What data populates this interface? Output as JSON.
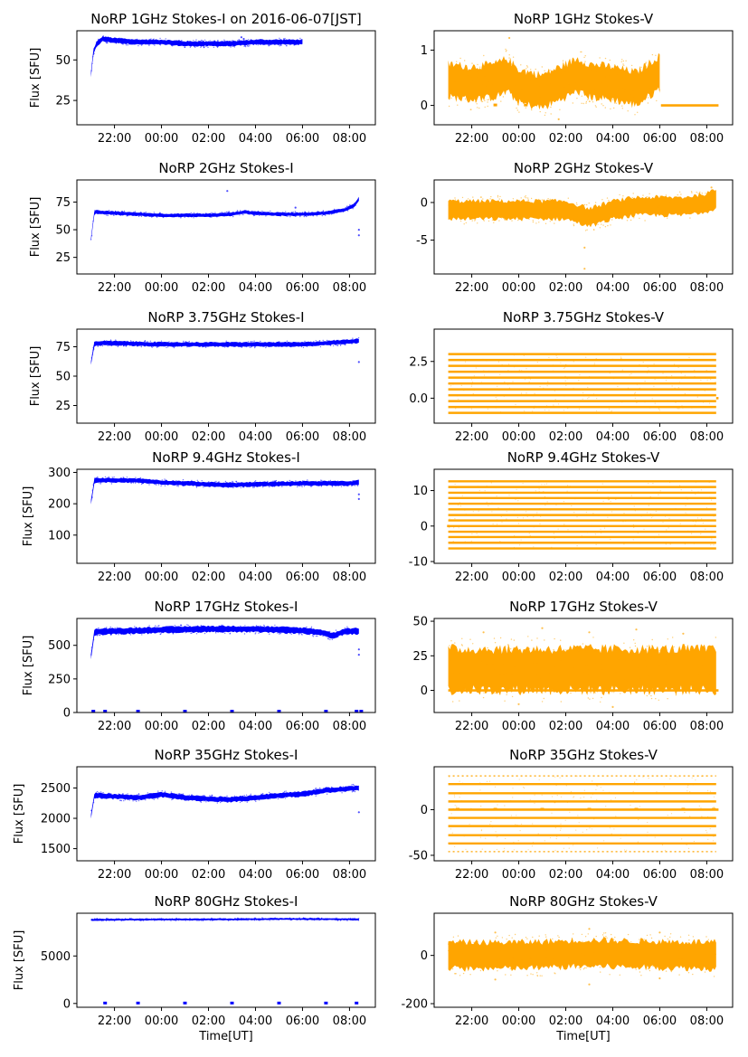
{
  "chart_data": [
    {
      "id": "1GHz-I",
      "type": "scatter",
      "title": "NoRP 1GHz Stokes-I on 2016-06-07[JST]",
      "ylabel": "Flux [SFU]",
      "xlabel": "",
      "color": "#0000ff",
      "ylim": [
        10,
        68
      ],
      "yticks": [
        {
          "v": 25,
          "label": "25"
        },
        {
          "v": 50,
          "label": "50"
        }
      ],
      "series": [
        {
          "points": [
            [
              0,
              41
            ],
            [
              0.1,
              55
            ],
            [
              0.25,
              60
            ],
            [
              0.5,
              63
            ],
            [
              1,
              62
            ],
            [
              2,
              61
            ],
            [
              3,
              61
            ],
            [
              4,
              60
            ],
            [
              5,
              60
            ],
            [
              6,
              60
            ],
            [
              7,
              61
            ],
            [
              8,
              61
            ],
            [
              9,
              61
            ]
          ],
          "halfwidth": 1.5
        }
      ],
      "sparse": [
        [
          6.4,
          64
        ],
        [
          6.5,
          63
        ]
      ],
      "off_marks": []
    },
    {
      "id": "1GHz-V",
      "type": "scatter",
      "title": "NoRP 1GHz Stokes-V",
      "ylabel": "",
      "xlabel": "",
      "color": "#ffa500",
      "ylim": [
        -0.35,
        1.35
      ],
      "yticks": [
        {
          "v": 0,
          "label": "0"
        },
        {
          "v": 1,
          "label": "1"
        }
      ],
      "series": [
        {
          "points": [
            [
              0,
              0.45
            ],
            [
              1,
              0.4
            ],
            [
              2,
              0.45
            ],
            [
              2.5,
              0.55
            ],
            [
              3,
              0.35
            ],
            [
              4,
              0.25
            ],
            [
              5,
              0.45
            ],
            [
              5.5,
              0.55
            ],
            [
              6,
              0.45
            ],
            [
              7,
              0.4
            ],
            [
              8,
              0.3
            ],
            [
              9,
              0.6
            ]
          ],
          "halfwidth": 0.3
        }
      ],
      "sparse": [
        [
          2.6,
          1.22
        ],
        [
          4.7,
          -0.25
        ]
      ],
      "flat": {
        "x0": 9.05,
        "x1": 11.5,
        "y": 0
      },
      "off_marks": [
        [
          2.0,
          0
        ],
        [
          3.3,
          0
        ]
      ]
    },
    {
      "id": "2GHz-I",
      "type": "scatter",
      "title": "NoRP 2GHz Stokes-I",
      "ylabel": "Flux [SFU]",
      "xlabel": "",
      "color": "#0000ff",
      "ylim": [
        10,
        95
      ],
      "yticks": [
        {
          "v": 25,
          "label": "25"
        },
        {
          "v": 50,
          "label": "50"
        },
        {
          "v": 75,
          "label": "75"
        }
      ],
      "series": [
        {
          "points": [
            [
              0,
              41
            ],
            [
              0.15,
              66
            ],
            [
              1,
              65
            ],
            [
              2,
              64
            ],
            [
              3,
              63
            ],
            [
              4,
              63
            ],
            [
              5,
              63
            ],
            [
              6,
              64
            ],
            [
              6.5,
              66
            ],
            [
              7,
              65
            ],
            [
              8,
              64
            ],
            [
              9,
              64
            ],
            [
              10,
              65
            ],
            [
              10.8,
              68
            ],
            [
              11.2,
              72
            ],
            [
              11.4,
              78
            ]
          ],
          "halfwidth": 1.5
        }
      ],
      "sparse": [
        [
          5.8,
          85
        ],
        [
          8.7,
          70
        ],
        [
          11.4,
          50
        ],
        [
          11.4,
          45
        ]
      ],
      "off_marks": []
    },
    {
      "id": "2GHz-V",
      "type": "scatter",
      "title": "NoRP 2GHz Stokes-V",
      "ylabel": "",
      "xlabel": "",
      "color": "#ffa500",
      "ylim": [
        -9.5,
        3
      ],
      "yticks": [
        {
          "v": -5,
          "label": "-5"
        },
        {
          "v": 0,
          "label": "0"
        }
      ],
      "series": [
        {
          "points": [
            [
              0,
              -1
            ],
            [
              1,
              -1
            ],
            [
              2,
              -1
            ],
            [
              3,
              -1
            ],
            [
              4,
              -1
            ],
            [
              5,
              -1
            ],
            [
              5.5,
              -1.5
            ],
            [
              6,
              -2
            ],
            [
              6.5,
              -1.5
            ],
            [
              7,
              -1
            ],
            [
              8,
              -0.5
            ],
            [
              9,
              -0.5
            ],
            [
              10,
              -0.5
            ],
            [
              11,
              0
            ],
            [
              11.4,
              0.5
            ]
          ],
          "halfwidth": 1.2
        }
      ],
      "sparse": [
        [
          5.8,
          -8.8
        ],
        [
          5.8,
          -6
        ],
        [
          11.2,
          2
        ]
      ],
      "off_marks": []
    },
    {
      "id": "3.75GHz-I",
      "type": "scatter",
      "title": "NoRP 3.75GHz Stokes-I",
      "ylabel": "Flux [SFU]",
      "xlabel": "",
      "color": "#0000ff",
      "ylim": [
        10,
        90
      ],
      "yticks": [
        {
          "v": 25,
          "label": "25"
        },
        {
          "v": 50,
          "label": "50"
        },
        {
          "v": 75,
          "label": "75"
        }
      ],
      "series": [
        {
          "points": [
            [
              0,
              61
            ],
            [
              0.15,
              78
            ],
            [
              1,
              78
            ],
            [
              3,
              77
            ],
            [
              5,
              77
            ],
            [
              7,
              77
            ],
            [
              9,
              77
            ],
            [
              10,
              78
            ],
            [
              11.4,
              80
            ]
          ],
          "halfwidth": 1.8
        }
      ],
      "sparse": [
        [
          11.4,
          62
        ]
      ],
      "off_marks": []
    },
    {
      "id": "3.75GHz-V",
      "type": "bands",
      "title": "NoRP 3.75GHz Stokes-V",
      "ylabel": "",
      "xlabel": "",
      "color": "#ffa500",
      "ylim": [
        -1.7,
        4.7
      ],
      "yticks": [
        {
          "v": 0,
          "label": "0.0"
        },
        {
          "v": 2.5,
          "label": "2.5"
        }
      ],
      "bands": [
        -1.0,
        -0.6,
        -0.2,
        0.2,
        0.6,
        1.0,
        1.4,
        1.8,
        2.2,
        2.6,
        3.0
      ],
      "x0": 0,
      "x1": 11.4,
      "flat": {
        "x0": 11.4,
        "x1": 11.5,
        "y": 0
      },
      "off_marks": []
    },
    {
      "id": "9.4GHz-I",
      "type": "scatter",
      "title": "NoRP 9.4GHz Stokes-I",
      "ylabel": "Flux [SFU]",
      "xlabel": "",
      "color": "#0000ff",
      "ylim": [
        10,
        310
      ],
      "yticks": [
        {
          "v": 100,
          "label": "100"
        },
        {
          "v": 200,
          "label": "200"
        },
        {
          "v": 300,
          "label": "300"
        }
      ],
      "series": [
        {
          "points": [
            [
              0,
              205
            ],
            [
              0.15,
              275
            ],
            [
              1,
              275
            ],
            [
              2,
              274
            ],
            [
              3,
              268
            ],
            [
              4,
              265
            ],
            [
              5,
              262
            ],
            [
              6,
              260
            ],
            [
              7,
              262
            ],
            [
              8,
              263
            ],
            [
              9,
              265
            ],
            [
              10,
              265
            ],
            [
              11,
              265
            ],
            [
              11.4,
              268
            ]
          ],
          "halfwidth": 7
        }
      ],
      "sparse": [
        [
          11.4,
          230
        ],
        [
          11.4,
          215
        ]
      ],
      "off_marks": []
    },
    {
      "id": "9.4GHz-V",
      "type": "bands",
      "title": "NoRP 9.4GHz Stokes-V",
      "ylabel": "",
      "xlabel": "",
      "color": "#ffa500",
      "ylim": [
        -10.5,
        16
      ],
      "yticks": [
        {
          "v": -10,
          "label": "-10"
        },
        {
          "v": 0,
          "label": "0"
        },
        {
          "v": 10,
          "label": "10"
        }
      ],
      "bands": [
        -6.3,
        -4.7,
        -3.1,
        -1.6,
        0,
        1.6,
        3.1,
        4.7,
        6.3,
        7.9,
        9.4,
        11,
        12.6
      ],
      "x0": 0,
      "x1": 11.4,
      "flat": {
        "x0": -0.05,
        "x1": 0.05,
        "y": 0
      },
      "off_marks": []
    },
    {
      "id": "17GHz-I",
      "type": "scatter",
      "title": "NoRP 17GHz Stokes-I",
      "ylabel": "Flux [SFU]",
      "xlabel": "",
      "color": "#0000ff",
      "ylim": [
        0,
        700
      ],
      "yticks": [
        {
          "v": 0,
          "label": "0"
        },
        {
          "v": 250,
          "label": "250"
        },
        {
          "v": 500,
          "label": "500"
        }
      ],
      "series": [
        {
          "points": [
            [
              0,
              420
            ],
            [
              0.15,
              600
            ],
            [
              1,
              605
            ],
            [
              3,
              615
            ],
            [
              5,
              622
            ],
            [
              7,
              620
            ],
            [
              9,
              610
            ],
            [
              9.8,
              595
            ],
            [
              10.3,
              570
            ],
            [
              10.8,
              605
            ],
            [
              11.4,
              605
            ]
          ],
          "halfwidth": 22
        }
      ],
      "sparse": [
        [
          11.4,
          470
        ],
        [
          11.4,
          430
        ]
      ],
      "off_marks": [
        [
          0.1,
          0
        ],
        [
          0.6,
          0
        ],
        [
          2,
          0
        ],
        [
          4,
          0
        ],
        [
          6,
          0
        ],
        [
          8,
          0
        ],
        [
          10,
          0
        ],
        [
          11.3,
          0
        ],
        [
          11.5,
          0
        ]
      ]
    },
    {
      "id": "17GHz-V",
      "type": "scatter",
      "title": "NoRP 17GHz Stokes-V",
      "ylabel": "",
      "xlabel": "",
      "color": "#ffa500",
      "ylim": [
        -16,
        52
      ],
      "yticks": [
        {
          "v": 0,
          "label": "0"
        },
        {
          "v": 25,
          "label": "25"
        },
        {
          "v": 50,
          "label": "50"
        }
      ],
      "series": [
        {
          "points": [
            [
              0,
              15
            ],
            [
              11.4,
              15
            ]
          ],
          "halfwidth": 15
        }
      ],
      "sparse": [
        [
          1.5,
          42
        ],
        [
          4,
          45
        ],
        [
          6,
          42
        ],
        [
          8,
          44
        ],
        [
          10,
          41
        ],
        [
          3,
          -10
        ],
        [
          7,
          -12
        ]
      ],
      "flat": {
        "x0": 0,
        "x1": 11.5,
        "y": 0
      },
      "off_marks": []
    },
    {
      "id": "35GHz-I",
      "type": "scatter",
      "title": "NoRP 35GHz Stokes-I",
      "ylabel": "Flux [SFU]",
      "xlabel": "",
      "color": "#0000ff",
      "ylim": [
        1300,
        2850
      ],
      "yticks": [
        {
          "v": 1500,
          "label": "1500"
        },
        {
          "v": 2000,
          "label": "2000"
        },
        {
          "v": 2500,
          "label": "2500"
        }
      ],
      "series": [
        {
          "points": [
            [
              0,
              2030
            ],
            [
              0.15,
              2380
            ],
            [
              1,
              2360
            ],
            [
              2,
              2340
            ],
            [
              3,
              2390
            ],
            [
              4,
              2340
            ],
            [
              5,
              2320
            ],
            [
              6,
              2310
            ],
            [
              7,
              2340
            ],
            [
              8,
              2380
            ],
            [
              9,
              2400
            ],
            [
              10,
              2460
            ],
            [
              11,
              2490
            ],
            [
              11.4,
              2500
            ]
          ],
          "halfwidth": 40
        }
      ],
      "sparse": [
        [
          11.4,
          2100
        ]
      ],
      "off_marks": []
    },
    {
      "id": "35GHz-V",
      "type": "bands",
      "title": "NoRP 35GHz Stokes-V",
      "ylabel": "",
      "xlabel": "",
      "color": "#ffa500",
      "ylim": [
        -56,
        47
      ],
      "yticks": [
        {
          "v": -50,
          "label": "-50"
        },
        {
          "v": 0,
          "label": "0"
        }
      ],
      "bands": [
        -46,
        -37,
        -28,
        -18,
        -9,
        9,
        18,
        28,
        37
      ],
      "sparse_bands": [
        -46,
        37
      ],
      "x0": 0,
      "x1": 11.4,
      "flat": {
        "x0": 0,
        "x1": 11.5,
        "y": 0
      },
      "off_marks": [
        [
          0.4,
          0
        ],
        [
          2,
          0
        ],
        [
          4,
          0
        ],
        [
          6,
          0
        ],
        [
          8,
          0
        ],
        [
          10,
          0
        ],
        [
          11.3,
          0
        ]
      ]
    },
    {
      "id": "80GHz-I",
      "type": "scatter",
      "title": "NoRP 80GHz Stokes-I",
      "ylabel": "Flux [SFU]",
      "xlabel": "Time[UT]",
      "color": "#0000ff",
      "ylim": [
        -400,
        9500
      ],
      "yticks": [
        {
          "v": 0,
          "label": "0"
        },
        {
          "v": 5000,
          "label": "5000"
        }
      ],
      "series": [
        {
          "points": [
            [
              0,
              8800
            ],
            [
              3,
              8850
            ],
            [
              6,
              8850
            ],
            [
              8,
              8900
            ],
            [
              10,
              8880
            ],
            [
              11.4,
              8850
            ]
          ],
          "halfwidth": 90
        }
      ],
      "sparse": [],
      "off_marks": [
        [
          0.6,
          0
        ],
        [
          2,
          0
        ],
        [
          4,
          0
        ],
        [
          6,
          0
        ],
        [
          8,
          0
        ],
        [
          10,
          0
        ],
        [
          11.3,
          0
        ]
      ]
    },
    {
      "id": "80GHz-V",
      "type": "scatter",
      "title": "NoRP 80GHz Stokes-V",
      "ylabel": "",
      "xlabel": "Time[UT]",
      "color": "#ffa500",
      "ylim": [
        -215,
        175
      ],
      "yticks": [
        {
          "v": -200,
          "label": "-200"
        },
        {
          "v": 0,
          "label": "0"
        }
      ],
      "series": [
        {
          "points": [
            [
              0,
              0
            ],
            [
              3,
              0
            ],
            [
              6,
              10
            ],
            [
              8,
              5
            ],
            [
              11.4,
              0
            ]
          ],
          "halfwidth": 55
        }
      ],
      "sparse": [
        [
          2,
          95
        ],
        [
          6,
          110
        ],
        [
          9,
          95
        ],
        [
          2,
          -100
        ],
        [
          6,
          -120
        ],
        [
          9,
          -95
        ]
      ],
      "off_marks": []
    }
  ],
  "xaxis": {
    "start_utc": "2016-06-06T21:00",
    "end_utc": "2016-06-07T08:30",
    "ticks": [
      "22:00",
      "00:00",
      "02:00",
      "04:00",
      "06:00",
      "08:00"
    ]
  }
}
